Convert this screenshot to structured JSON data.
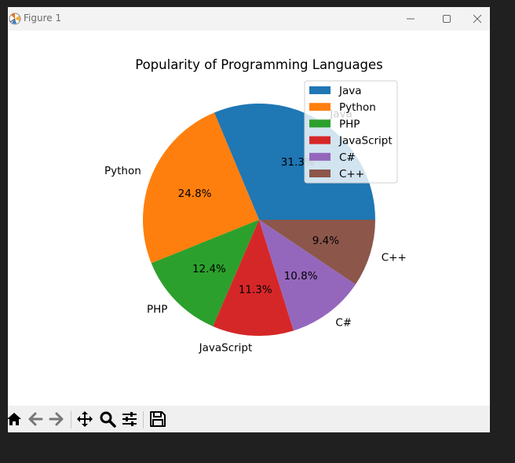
{
  "window": {
    "title": "Figure 1"
  },
  "toolbar": {
    "buttons": [
      {
        "name": "home-button",
        "icon": "home-icon"
      },
      {
        "name": "back-button",
        "icon": "arrow-left-icon"
      },
      {
        "name": "forward-button",
        "icon": "arrow-right-icon"
      },
      {
        "name": "pan-button",
        "icon": "move-icon"
      },
      {
        "name": "zoom-button",
        "icon": "magnifier-icon"
      },
      {
        "name": "configure-subplots-button",
        "icon": "sliders-icon"
      },
      {
        "name": "save-button",
        "icon": "floppy-disk-icon"
      }
    ]
  },
  "chart_data": {
    "type": "pie",
    "title": "Popularity of Programming Languages",
    "labels": [
      "Java",
      "Python",
      "PHP",
      "JavaScript",
      "C#",
      "C++"
    ],
    "values": [
      31.3,
      24.8,
      12.4,
      11.3,
      10.8,
      9.4
    ],
    "autopct_labels": [
      "31.3%",
      "24.8%",
      "12.4%",
      "11.3%",
      "10.8%",
      "9.4%"
    ],
    "colors": [
      "#1f77b4",
      "#ff7f0e",
      "#2ca02c",
      "#d62728",
      "#9467bd",
      "#8c564b"
    ],
    "start_angle_deg": 0,
    "legend": {
      "placement": "upper-right",
      "entries": [
        "Java",
        "Python",
        "PHP",
        "JavaScript",
        "C#",
        "C++"
      ]
    }
  }
}
